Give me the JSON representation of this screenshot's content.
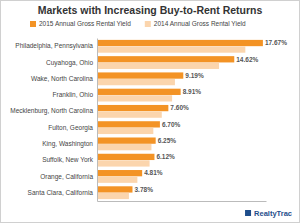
{
  "chart_data": {
    "type": "bar",
    "orientation": "horizontal",
    "title": "Markets with Increasing Buy-to-Rent Returns",
    "categories": [
      "Philadelphia, Pennsylvania",
      "Cuyahoga, Ohio",
      "Wake, North Carolina",
      "Franklin, Ohio",
      "Mecklenburg, North Carolina",
      "Fulton, Georgia",
      "King, Washington",
      "Suffolk, New York",
      "Orange, California",
      "Santa Clara, California"
    ],
    "series": [
      {
        "name": "2015 Annual Gross Rental Yield",
        "color": "#f39325",
        "values": [
          17.67,
          14.62,
          9.19,
          8.91,
          7.6,
          6.7,
          6.25,
          6.12,
          4.81,
          3.78
        ],
        "value_labels": [
          "17.67%",
          "14.62%",
          "9.19%",
          "8.91%",
          "7.60%",
          "6.70%",
          "6.25%",
          "6.12%",
          "4.81%",
          "3.78%"
        ]
      },
      {
        "name": "2014 Annual Gross Rental Yield",
        "color": "#fbd5ad",
        "values": [
          15.8,
          13.0,
          8.3,
          8.0,
          6.9,
          6.0,
          5.8,
          5.6,
          4.3,
          3.4
        ]
      }
    ],
    "xlim": [
      0,
      18
    ],
    "xticks": [],
    "tick_labels": false,
    "grid": false,
    "legend": "top",
    "data_labels": true,
    "annotation": "RealtyTrac"
  }
}
